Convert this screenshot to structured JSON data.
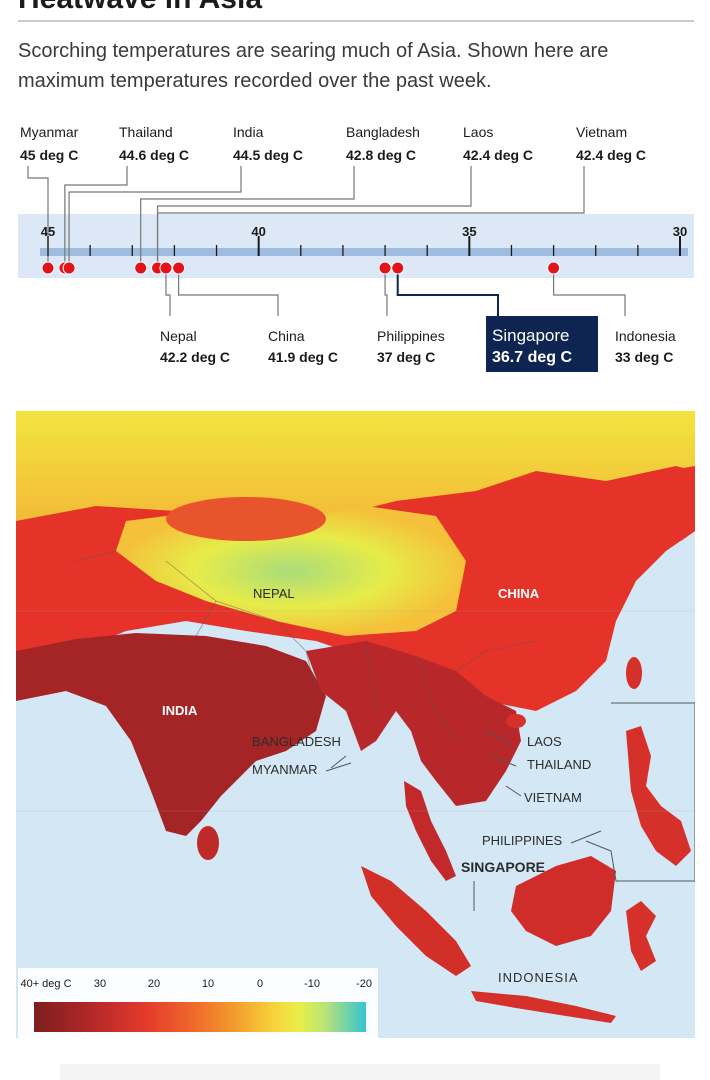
{
  "header": {
    "title": "Heatwave in Asia",
    "subtitle": "Scorching temperatures are searing much of Asia. Shown here are maximum temperatures recorded over the past week."
  },
  "chart_data": {
    "type": "scatter",
    "x_axis": {
      "ticks": [
        45,
        40,
        35,
        30
      ],
      "range": [
        45.3,
        29.8
      ],
      "reversed": true
    },
    "points": [
      {
        "country": "Myanmar",
        "value": 45,
        "unit": "deg C",
        "label": "45 deg C",
        "row": "top",
        "highlight": false
      },
      {
        "country": "Thailand",
        "value": 44.6,
        "unit": "deg C",
        "label": "44.6 deg C",
        "row": "top",
        "highlight": false
      },
      {
        "country": "India",
        "value": 44.5,
        "unit": "deg C",
        "label": "44.5 deg C",
        "row": "top",
        "highlight": false
      },
      {
        "country": "Bangladesh",
        "value": 42.8,
        "unit": "deg C",
        "label": "42.8 deg C",
        "row": "top",
        "highlight": false
      },
      {
        "country": "Laos",
        "value": 42.4,
        "unit": "deg C",
        "label": "42.4 deg C",
        "row": "top",
        "highlight": false
      },
      {
        "country": "Vietnam",
        "value": 42.4,
        "unit": "deg C",
        "label": "42.4 deg C",
        "row": "top",
        "highlight": false
      },
      {
        "country": "Nepal",
        "value": 42.2,
        "unit": "deg C",
        "label": "42.2 deg C",
        "row": "bottom",
        "highlight": false
      },
      {
        "country": "China",
        "value": 41.9,
        "unit": "deg C",
        "label": "41.9 deg C",
        "row": "bottom",
        "highlight": false
      },
      {
        "country": "Philippines",
        "value": 37,
        "unit": "deg C",
        "label": "37 deg C",
        "row": "bottom",
        "highlight": false
      },
      {
        "country": "Singapore",
        "value": 36.7,
        "unit": "deg C",
        "label": "36.7 deg C",
        "row": "bottom",
        "highlight": true
      },
      {
        "country": "Indonesia",
        "value": 33,
        "unit": "deg C",
        "label": "33 deg C",
        "row": "bottom",
        "highlight": false
      }
    ],
    "colors": {
      "dot": "#e2141b",
      "axis_band": "#dce8f5",
      "axis_line": "#9ebbe0",
      "highlight_box": "#0e2552"
    }
  },
  "map": {
    "labels": {
      "nepal": "NEPAL",
      "china": "CHINA",
      "india": "INDIA",
      "bangladesh": "BANGLADESH",
      "myanmar": "MYANMAR",
      "laos": "LAOS",
      "thailand": "THAILAND",
      "vietnam": "VIETNAM",
      "philippines": "PHILIPPINES",
      "singapore": "SINGAPORE",
      "indonesia": "INDONESIA"
    },
    "colors": {
      "sea": "#d4e7f5",
      "very_hot": "#a52526",
      "hot": "#e5332a",
      "warm": "#f4a030",
      "mild": "#f2e540",
      "cool": "#a9dc7a"
    }
  },
  "legend": {
    "ticks": [
      "40+ deg C",
      "30",
      "20",
      "10",
      "0",
      "-10",
      "-20"
    ]
  }
}
